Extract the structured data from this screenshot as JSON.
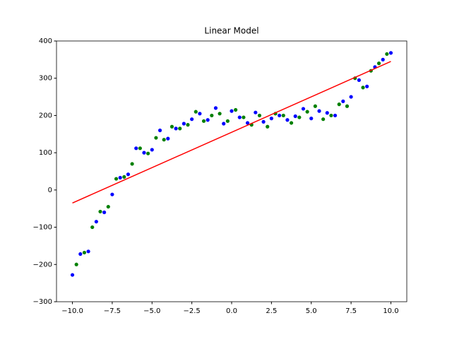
{
  "chart_data": {
    "type": "scatter",
    "title": "Linear Model",
    "xlim": [
      -11,
      11
    ],
    "ylim": [
      -300,
      400
    ],
    "xticks": [
      {
        "value": -10,
        "label": "−10.0"
      },
      {
        "value": -7.5,
        "label": "−7.5"
      },
      {
        "value": -5,
        "label": "−5.0"
      },
      {
        "value": -2.5,
        "label": "−2.5"
      },
      {
        "value": 0,
        "label": "0.0"
      },
      {
        "value": 2.5,
        "label": "2.5"
      },
      {
        "value": 5,
        "label": "5.0"
      },
      {
        "value": 7.5,
        "label": "7.5"
      },
      {
        "value": 10,
        "label": "10.0"
      }
    ],
    "yticks": [
      {
        "value": -300,
        "label": "−300"
      },
      {
        "value": -200,
        "label": "−200"
      },
      {
        "value": -100,
        "label": "−100"
      },
      0,
      100,
      200,
      300,
      400
    ],
    "series": [
      {
        "type": "scatter",
        "color": "#0000ff",
        "x": [
          -10,
          -9.5,
          -9,
          -8.5,
          -8,
          -7.5,
          -7,
          -6.5,
          -6,
          -5.5,
          -5,
          -4.5,
          -4,
          -3.5,
          -3,
          -2.5,
          -2,
          -1.5,
          -1,
          -0.5,
          0,
          0.5,
          1,
          1.5,
          2,
          2.5,
          3,
          3.5,
          4,
          4.5,
          5,
          5.5,
          6,
          6.5,
          7,
          7.5,
          8,
          8.5,
          9,
          9.5,
          10
        ],
        "values": [
          -228,
          -172,
          -165,
          -85,
          -60,
          -12,
          33,
          42,
          112,
          100,
          108,
          160,
          138,
          165,
          178,
          190,
          205,
          188,
          220,
          178,
          212,
          195,
          180,
          208,
          183,
          192,
          200,
          188,
          198,
          218,
          192,
          212,
          207,
          200,
          238,
          250,
          295,
          278,
          330,
          350,
          368
        ]
      },
      {
        "type": "scatter",
        "color": "#008000",
        "x": [
          -9.75,
          -9.25,
          -8.75,
          -8.25,
          -7.75,
          -7.25,
          -6.75,
          -6.25,
          -5.75,
          -5.25,
          -4.75,
          -4.25,
          -3.75,
          -3.25,
          -2.75,
          -2.25,
          -1.75,
          -1.25,
          -0.75,
          -0.25,
          0.25,
          0.75,
          1.25,
          1.75,
          2.25,
          2.75,
          3.25,
          3.75,
          4.25,
          4.75,
          5.25,
          5.75,
          6.25,
          6.75,
          7.25,
          7.75,
          8.25,
          8.75,
          9.25,
          9.75
        ],
        "values": [
          -200,
          -168,
          -100,
          -58,
          -45,
          30,
          35,
          70,
          112,
          98,
          140,
          135,
          170,
          165,
          175,
          210,
          185,
          200,
          205,
          185,
          215,
          195,
          175,
          200,
          170,
          205,
          200,
          180,
          195,
          210,
          225,
          190,
          200,
          230,
          225,
          300,
          275,
          320,
          340,
          365
        ]
      },
      {
        "type": "line",
        "color": "#ff0000",
        "x": [
          -10,
          10
        ],
        "values": [
          -35,
          345
        ]
      }
    ]
  }
}
